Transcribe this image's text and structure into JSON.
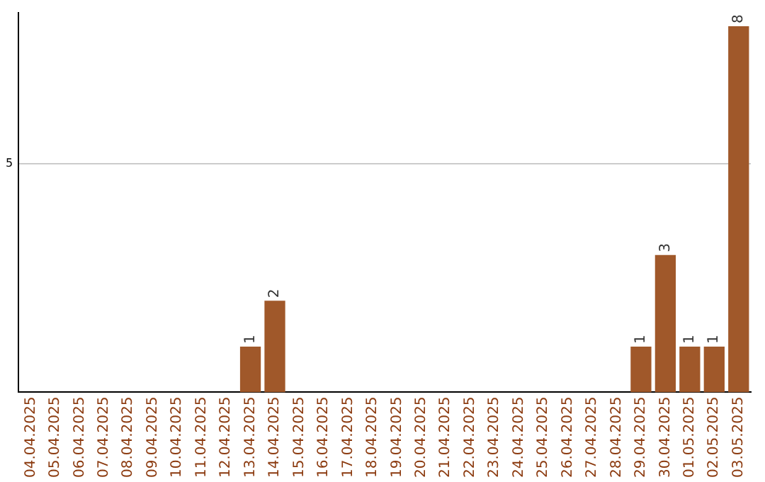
{
  "chart_data": {
    "type": "bar",
    "categories": [
      "04.04.2025",
      "05.04.2025",
      "06.04.2025",
      "07.04.2025",
      "08.04.2025",
      "09.04.2025",
      "10.04.2025",
      "11.04.2025",
      "12.04.2025",
      "13.04.2025",
      "14.04.2025",
      "15.04.2025",
      "16.04.2025",
      "17.04.2025",
      "18.04.2025",
      "19.04.2025",
      "20.04.2025",
      "21.04.2025",
      "22.04.2025",
      "23.04.2025",
      "24.04.2025",
      "25.04.2025",
      "26.04.2025",
      "27.04.2025",
      "28.04.2025",
      "29.04.2025",
      "30.04.2025",
      "01.05.2025",
      "02.05.2025",
      "03.05.2025"
    ],
    "values": [
      0,
      0,
      0,
      0,
      0,
      0,
      0,
      0,
      0,
      1,
      2,
      0,
      0,
      0,
      0,
      0,
      0,
      0,
      0,
      0,
      0,
      0,
      0,
      0,
      0,
      1,
      3,
      1,
      1,
      8
    ],
    "value_labels": [
      null,
      null,
      null,
      null,
      null,
      null,
      null,
      null,
      null,
      "1",
      "2",
      null,
      null,
      null,
      null,
      null,
      null,
      null,
      null,
      null,
      null,
      null,
      null,
      null,
      null,
      "1",
      "3",
      "1",
      "1",
      "8"
    ],
    "color": "#a0582a",
    "ylim": [
      0,
      8.3
    ],
    "yticks": [
      5
    ],
    "grid": "y",
    "legend": false
  }
}
